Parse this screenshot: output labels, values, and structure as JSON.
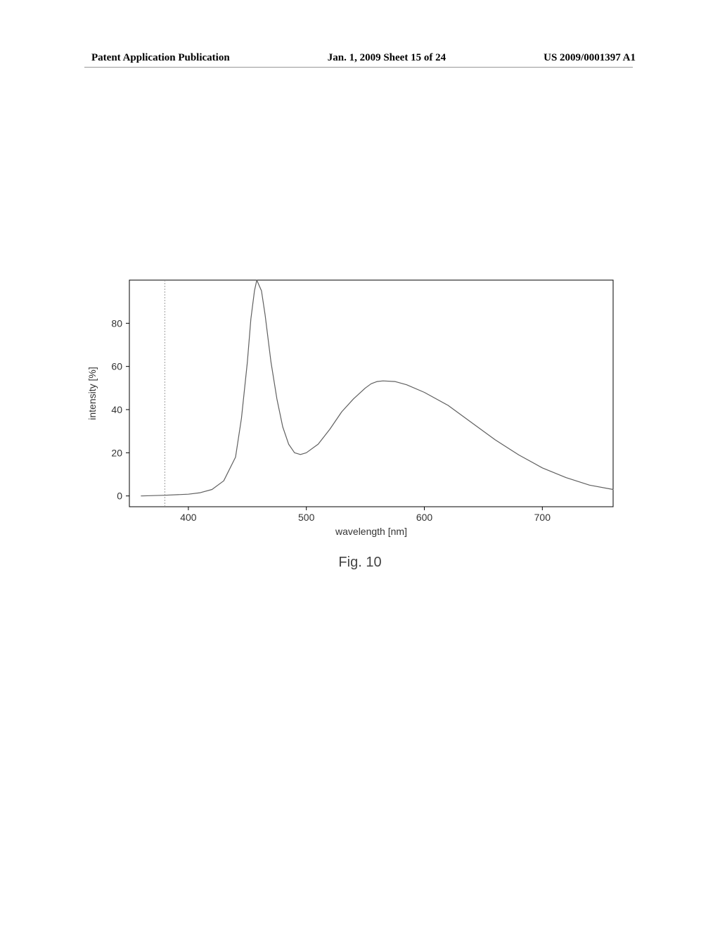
{
  "header": {
    "left": "Patent Application Publication",
    "center": "Jan. 1, 2009  Sheet 15 of 24",
    "right": "US 2009/0001397 A1"
  },
  "figure": {
    "caption": "Fig. 10",
    "chart": {
      "type": "line",
      "xlabel": "wavelength [nm]",
      "ylabel": "intensity [%]",
      "label_fontsize": 14,
      "tick_fontsize": 14,
      "xlim": [
        350,
        760
      ],
      "ylim": [
        -5,
        100
      ],
      "xticks": [
        400,
        500,
        600,
        700
      ],
      "yticks": [
        0,
        20,
        40,
        60,
        80
      ],
      "line_color": "#606060",
      "line_width": 1.2,
      "axis_color": "#000000",
      "background_color": "#ffffff",
      "reference_line_x": 380,
      "reference_line_color": "#888888",
      "data": [
        [
          360,
          0
        ],
        [
          380,
          0.3
        ],
        [
          400,
          0.8
        ],
        [
          410,
          1.5
        ],
        [
          420,
          3
        ],
        [
          430,
          7
        ],
        [
          440,
          18
        ],
        [
          445,
          36
        ],
        [
          450,
          62
        ],
        [
          453,
          82
        ],
        [
          456,
          95
        ],
        [
          458,
          100
        ],
        [
          462,
          95
        ],
        [
          465,
          84
        ],
        [
          470,
          62
        ],
        [
          475,
          45
        ],
        [
          480,
          32
        ],
        [
          485,
          24
        ],
        [
          490,
          20
        ],
        [
          495,
          19.2
        ],
        [
          500,
          20
        ],
        [
          510,
          24
        ],
        [
          520,
          31
        ],
        [
          530,
          39
        ],
        [
          540,
          45
        ],
        [
          550,
          50
        ],
        [
          555,
          52
        ],
        [
          560,
          53
        ],
        [
          565,
          53.3
        ],
        [
          575,
          53
        ],
        [
          585,
          51.5
        ],
        [
          600,
          48
        ],
        [
          620,
          42
        ],
        [
          640,
          34
        ],
        [
          660,
          26
        ],
        [
          680,
          19
        ],
        [
          700,
          13
        ],
        [
          720,
          8.5
        ],
        [
          740,
          5
        ],
        [
          760,
          3
        ]
      ]
    }
  }
}
